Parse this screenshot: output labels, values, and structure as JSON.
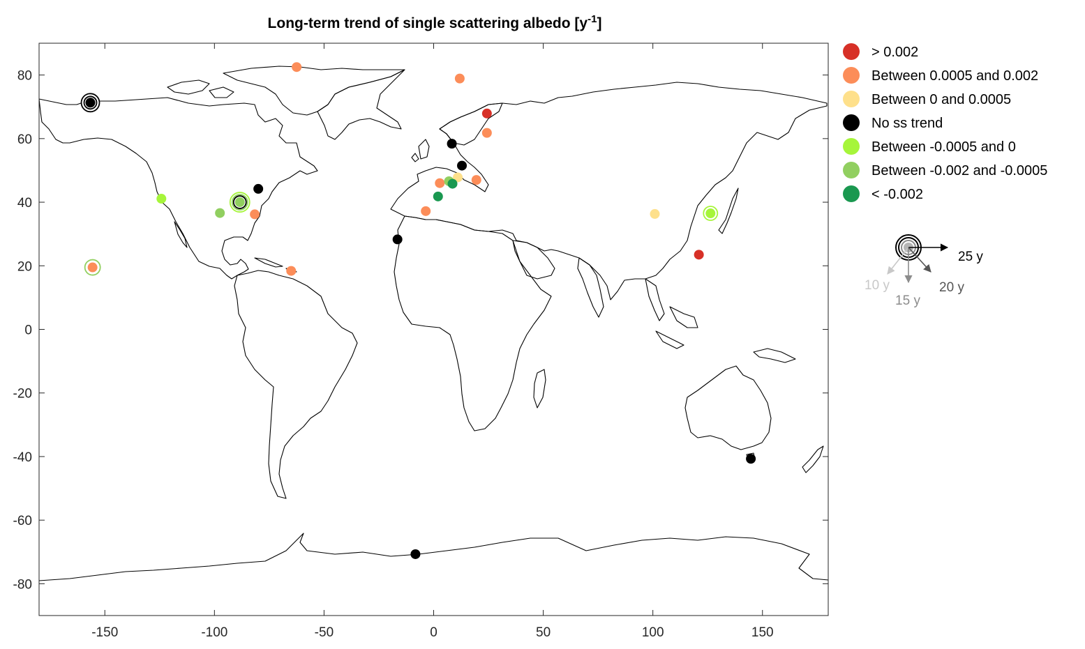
{
  "chart_data": {
    "type": "scatter",
    "title": "Long-term trend of single scattering albedo [y",
    "title_superscript": "-1",
    "title_suffix": "]",
    "xlim": [
      -180,
      180
    ],
    "ylim": [
      -90,
      90
    ],
    "xticks": [
      -150,
      -100,
      -50,
      0,
      50,
      100,
      150
    ],
    "yticks": [
      80,
      60,
      40,
      20,
      0,
      -20,
      -40,
      -60,
      -80
    ],
    "xlabel": "",
    "ylabel": "",
    "grid": false,
    "legend_position": "right",
    "categories": [
      {
        "id": "gt0002",
        "label": "> 0.002",
        "color": "#d73027"
      },
      {
        "id": "p0005_0002",
        "label": "Between 0.0005 and 0.002",
        "color": "#fc8d59"
      },
      {
        "id": "p0_0005",
        "label": "Between 0 and 0.0005",
        "color": "#fee08b"
      },
      {
        "id": "none",
        "label": "No ss trend",
        "color": "#000000"
      },
      {
        "id": "n0005_0",
        "label": "Between -0.0005 and 0",
        "color": "#a6f53a"
      },
      {
        "id": "n002_0005",
        "label": "Between -0.002 and -0.0005",
        "color": "#91cf60"
      },
      {
        "id": "lt002",
        "label": "< -0.002",
        "color": "#1a9850"
      }
    ],
    "duration_legend": {
      "labels": [
        "25 y",
        "10 y",
        "15 y",
        "20 y"
      ],
      "colors": [
        "#000000",
        "#c8c8c8",
        "#8c8c8c",
        "#555555"
      ]
    },
    "points": [
      {
        "lon": -156.6,
        "lat": 71.3,
        "category": "none",
        "rings": [
          {
            "r": 13,
            "color": "#000000"
          },
          {
            "r": 9,
            "color": "#000000"
          }
        ]
      },
      {
        "lon": -62.5,
        "lat": 82.5,
        "category": "p0005_0002"
      },
      {
        "lon": 11.9,
        "lat": 78.9,
        "category": "p0005_0002"
      },
      {
        "lon": 24.3,
        "lat": 67.9,
        "category": "gt0002"
      },
      {
        "lon": 24.3,
        "lat": 61.8,
        "category": "p0005_0002"
      },
      {
        "lon": 8.3,
        "lat": 58.4,
        "category": "none"
      },
      {
        "lon": 12.9,
        "lat": 51.5,
        "category": "none"
      },
      {
        "lon": 11.0,
        "lat": 47.8,
        "category": "p0_0005"
      },
      {
        "lon": 19.5,
        "lat": 47.0,
        "category": "p0005_0002"
      },
      {
        "lon": 2.8,
        "lat": 46.0,
        "category": "p0005_0002"
      },
      {
        "lon": 7.0,
        "lat": 46.6,
        "category": "n002_0005"
      },
      {
        "lon": 8.6,
        "lat": 45.8,
        "category": "lt002"
      },
      {
        "lon": 2.0,
        "lat": 41.8,
        "category": "lt002"
      },
      {
        "lon": -3.6,
        "lat": 37.2,
        "category": "p0005_0002"
      },
      {
        "lon": -16.5,
        "lat": 28.3,
        "category": "none"
      },
      {
        "lon": -124.2,
        "lat": 41.1,
        "category": "n0005_0"
      },
      {
        "lon": -97.5,
        "lat": 36.6,
        "category": "n002_0005"
      },
      {
        "lon": -88.4,
        "lat": 40.0,
        "category": "n002_0005",
        "rings": [
          {
            "r": 14,
            "color": "#a6f53a"
          },
          {
            "r": 11,
            "color": "#91cf60"
          },
          {
            "r": 9,
            "color": "#000000"
          }
        ]
      },
      {
        "lon": -80.0,
        "lat": 44.2,
        "category": "none"
      },
      {
        "lon": -81.6,
        "lat": 36.2,
        "category": "p0005_0002"
      },
      {
        "lon": -155.6,
        "lat": 19.5,
        "category": "p0005_0002",
        "rings": [
          {
            "r": 11,
            "color": "#91cf60"
          }
        ]
      },
      {
        "lon": -65.0,
        "lat": 18.4,
        "category": "p0005_0002"
      },
      {
        "lon": 100.9,
        "lat": 36.3,
        "category": "p0_0005"
      },
      {
        "lon": 126.3,
        "lat": 36.5,
        "category": "n0005_0",
        "rings": [
          {
            "r": 10,
            "color": "#a6f53a"
          }
        ]
      },
      {
        "lon": 121.0,
        "lat": 23.5,
        "category": "gt0002"
      },
      {
        "lon": 144.7,
        "lat": -40.7,
        "category": "none"
      },
      {
        "lon": -8.3,
        "lat": -70.7,
        "category": "none"
      }
    ]
  }
}
